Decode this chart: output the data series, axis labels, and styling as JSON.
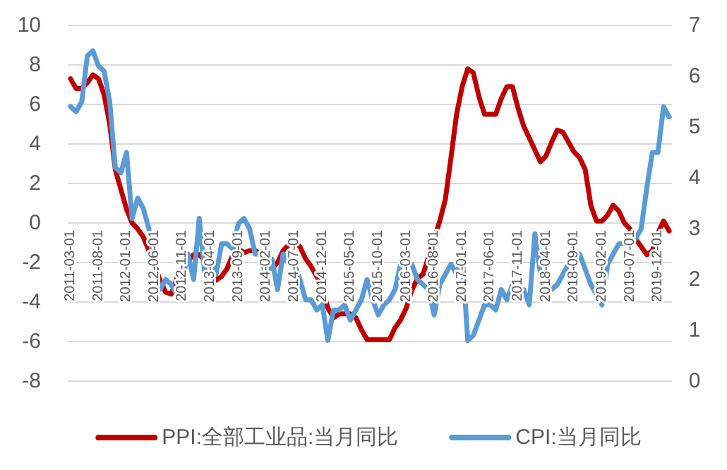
{
  "chart_data": {
    "type": "line",
    "categories": [
      "2011-03-01",
      null,
      null,
      null,
      null,
      "2011-08-01",
      null,
      null,
      null,
      null,
      "2012-01-01",
      null,
      null,
      null,
      null,
      "2012-06-01",
      null,
      null,
      null,
      null,
      "2012-11-01",
      null,
      null,
      null,
      null,
      "2013-04-01",
      null,
      null,
      null,
      null,
      "2013-09-01",
      null,
      null,
      null,
      null,
      "2014-02-01",
      null,
      null,
      null,
      null,
      "2014-07-01",
      null,
      null,
      null,
      null,
      "2014-12-01",
      null,
      null,
      null,
      null,
      "2015-05-01",
      null,
      null,
      null,
      null,
      "2015-10-01",
      null,
      null,
      null,
      null,
      "2016-03-01",
      null,
      null,
      null,
      null,
      "2016-08-01",
      null,
      null,
      null,
      null,
      "2017-01-01",
      null,
      null,
      null,
      null,
      "2017-06-01",
      null,
      null,
      null,
      null,
      "2017-11-01",
      null,
      null,
      null,
      null,
      "2018-04-01",
      null,
      null,
      null,
      null,
      "2018-09-01",
      null,
      null,
      null,
      null,
      "2019-02-01",
      null,
      null,
      null,
      null,
      "2019-07-01",
      null,
      null,
      null,
      null,
      "2019-12-01",
      null,
      null
    ],
    "series": [
      {
        "name": "PPI:全部工业品:当月同比",
        "color": "#c00000",
        "values": [
          7.3,
          6.8,
          6.8,
          7.1,
          7.5,
          7.3,
          6.5,
          5.0,
          2.7,
          1.7,
          0.7,
          0.0,
          -0.3,
          -0.7,
          -1.4,
          -2.1,
          -2.9,
          -3.5,
          -3.6,
          -2.8,
          -2.2,
          -1.9,
          -1.6,
          -1.6,
          -1.9,
          -2.6,
          -2.9,
          -2.7,
          -2.3,
          -1.6,
          -1.3,
          -1.5,
          -1.4,
          -1.4,
          -1.6,
          -2.0,
          -2.3,
          -2.0,
          -1.4,
          -1.1,
          -0.9,
          -1.2,
          -1.8,
          -2.2,
          -2.7,
          -3.3,
          -4.3,
          -4.8,
          -4.6,
          -4.6,
          -4.6,
          -4.8,
          -5.4,
          -5.9,
          -5.9,
          -5.9,
          -5.9,
          -5.9,
          -5.3,
          -4.9,
          -4.3,
          -3.4,
          -2.8,
          -2.6,
          -1.7,
          -0.8,
          0.1,
          1.2,
          3.3,
          5.5,
          6.9,
          7.8,
          7.6,
          6.4,
          5.5,
          5.5,
          5.5,
          6.3,
          6.9,
          6.9,
          5.8,
          4.9,
          4.3,
          3.7,
          3.1,
          3.4,
          4.1,
          4.7,
          4.6,
          4.1,
          3.6,
          3.3,
          2.7,
          0.9,
          0.1,
          0.1,
          0.4,
          0.9,
          0.6,
          0.0,
          -0.3,
          -0.8,
          -1.2,
          -1.6,
          -1.4,
          -0.5,
          0.1,
          -0.4
        ]
      },
      {
        "name": "CPI:当月同比",
        "color": "#5b9bd5",
        "axis": "y2",
        "values": [
          5.4,
          5.3,
          5.5,
          6.4,
          6.5,
          6.2,
          6.1,
          5.5,
          4.2,
          4.1,
          4.5,
          3.2,
          3.6,
          3.4,
          3.0,
          2.2,
          1.8,
          2.0,
          1.9,
          1.7,
          2.0,
          2.5,
          2.0,
          3.2,
          2.1,
          2.4,
          2.1,
          2.7,
          2.7,
          2.6,
          3.1,
          3.2,
          3.0,
          2.5,
          2.5,
          2.0,
          2.4,
          1.8,
          2.5,
          2.3,
          2.3,
          2.0,
          1.6,
          1.6,
          1.4,
          1.5,
          0.8,
          1.4,
          1.4,
          1.5,
          1.2,
          1.4,
          1.6,
          2.0,
          1.6,
          1.3,
          1.5,
          1.6,
          1.8,
          2.3,
          2.3,
          2.3,
          2.0,
          1.9,
          1.8,
          1.3,
          1.9,
          2.1,
          2.3,
          2.1,
          2.5,
          0.8,
          0.9,
          1.2,
          1.5,
          1.5,
          1.4,
          1.8,
          1.6,
          1.9,
          1.7,
          1.8,
          1.5,
          2.9,
          2.1,
          1.8,
          1.8,
          1.9,
          2.1,
          2.3,
          2.5,
          2.5,
          2.2,
          1.9,
          1.7,
          1.5,
          2.3,
          2.5,
          2.7,
          2.7,
          2.8,
          2.8,
          3.0,
          3.8,
          4.5,
          4.5,
          5.4,
          5.2
        ]
      }
    ],
    "ylim": [
      -8,
      10
    ],
    "yticks": [
      -8,
      -6,
      -4,
      -2,
      0,
      2,
      4,
      6,
      8,
      10
    ],
    "y2lim": [
      0,
      7
    ],
    "y2ticks": [
      0,
      1,
      2,
      3,
      4,
      5,
      6,
      7
    ],
    "grid": "y",
    "legend": "bottom"
  }
}
